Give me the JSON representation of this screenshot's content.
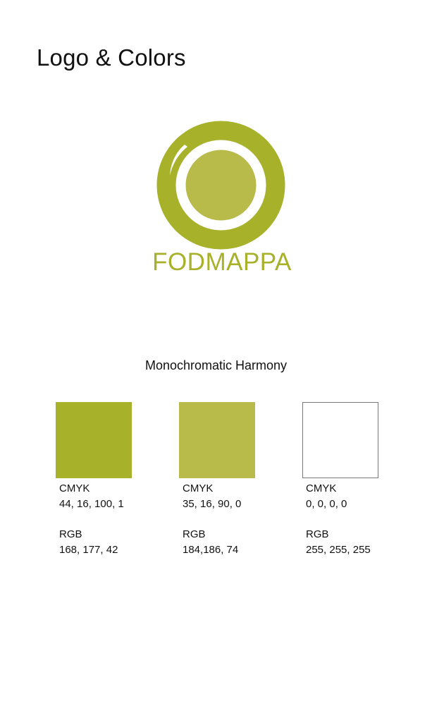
{
  "page": {
    "title": "Logo & Colors"
  },
  "logo": {
    "wordmark": "FODMAPPA",
    "outer_color": "#A8B12A",
    "inner_color": "#B8BA4A",
    "wordmark_color": "#A8B12A"
  },
  "harmony": {
    "title": "Monochromatic Harmony"
  },
  "swatches": [
    {
      "hex": "#A8B12A",
      "cmyk_label": "CMYK",
      "cmyk": "44, 16, 100, 1",
      "rgb_label": "RGB",
      "rgb": "168, 177, 42"
    },
    {
      "hex": "#B8BA4A",
      "cmyk_label": "CMYK",
      "cmyk": "35, 16, 90, 0",
      "rgb_label": "RGB",
      "rgb": "184,186, 74"
    },
    {
      "hex": "#FFFFFF",
      "cmyk_label": "CMYK",
      "cmyk": "0, 0, 0, 0",
      "rgb_label": "RGB",
      "rgb": "255, 255, 255"
    }
  ]
}
